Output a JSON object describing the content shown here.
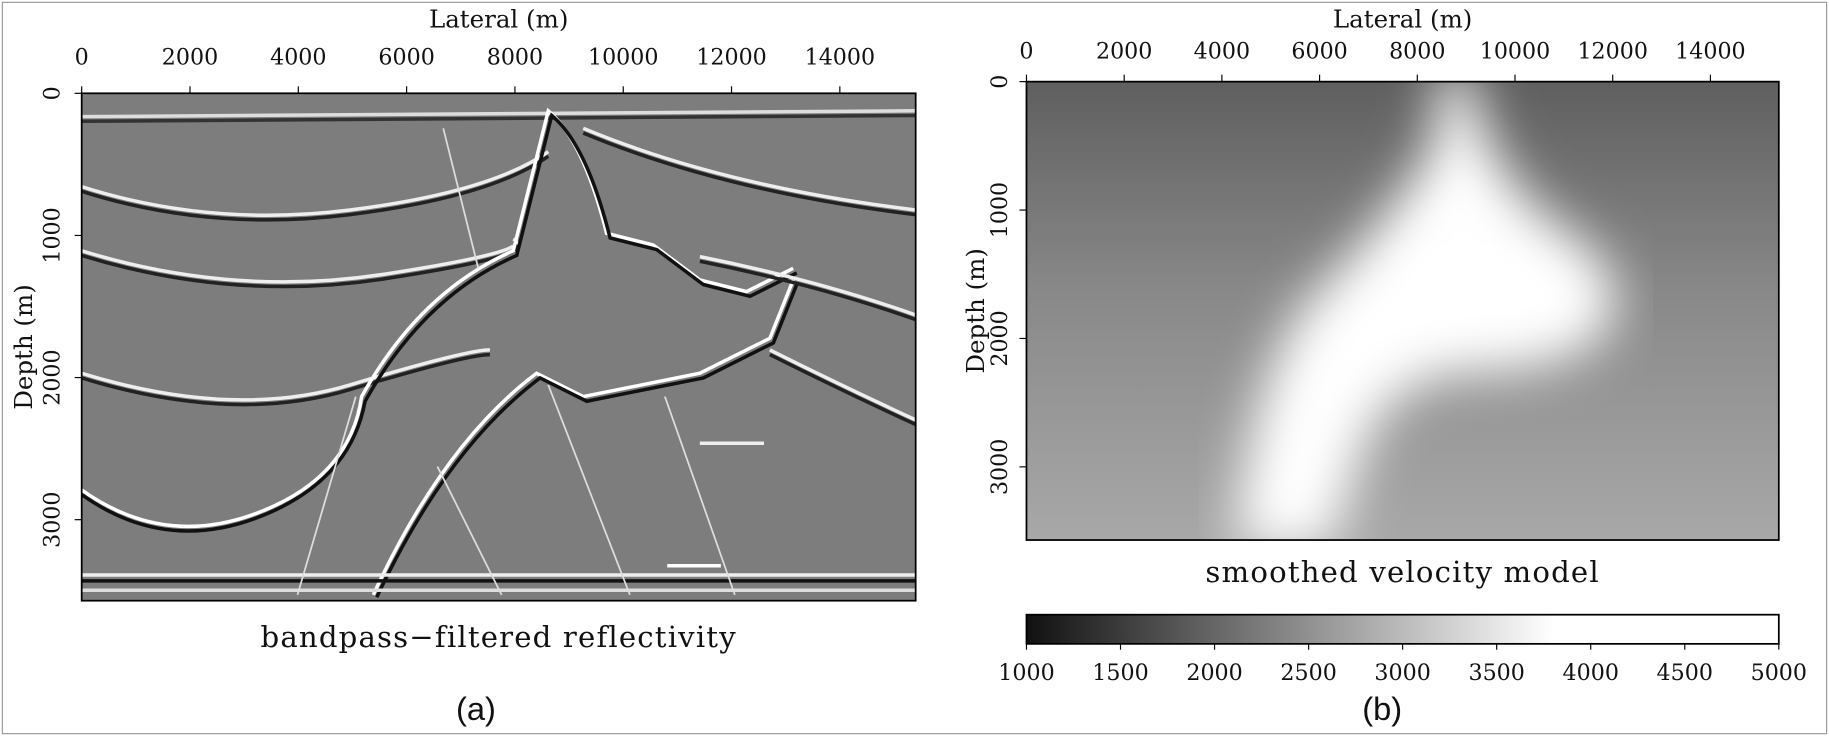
{
  "figure": {
    "panels": [
      {
        "xlabel": "Lateral (m)",
        "ylabel": "Depth (m)",
        "xlim": [
          0,
          15400
        ],
        "ylim": [
          0,
          3570
        ],
        "xticks": [
          0,
          2000,
          4000,
          6000,
          8000,
          10000,
          12000,
          14000
        ],
        "yticks": [
          0,
          1000,
          2000,
          3000
        ],
        "caption": "bandpass−filtered reflectivity",
        "label": "(a)"
      },
      {
        "xlabel": "Lateral (m)",
        "ylabel": "Depth (m)",
        "xlim": [
          0,
          15400
        ],
        "ylim": [
          0,
          3570
        ],
        "xticks": [
          0,
          2000,
          4000,
          6000,
          8000,
          10000,
          12000,
          14000
        ],
        "yticks": [
          0,
          1000,
          2000,
          3000
        ],
        "caption": "smoothed velocity model",
        "label": "(b)"
      }
    ],
    "colorbar": {
      "lim": [
        1000,
        5000
      ],
      "ticks": [
        1000,
        1500,
        2000,
        2500,
        3000,
        3500,
        4000,
        4500,
        5000
      ]
    }
  }
}
